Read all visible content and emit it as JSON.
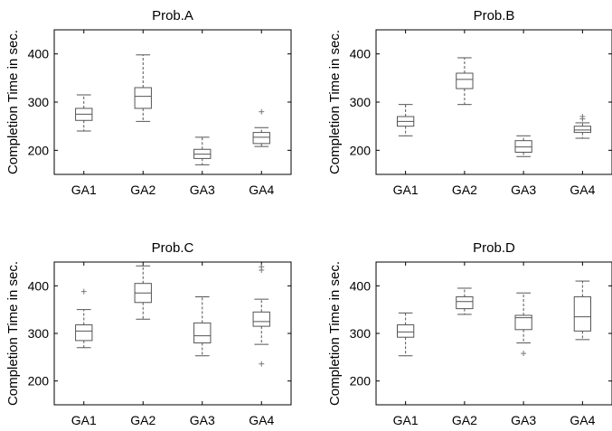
{
  "chart_data": [
    {
      "type": "box",
      "title": "Prob.A",
      "ylabel": "Completion Time in sec.",
      "categories": [
        "GA1",
        "GA2",
        "GA3",
        "GA4"
      ],
      "ylim": [
        150,
        450
      ],
      "yticks": [
        200,
        300,
        400
      ],
      "boxes": [
        {
          "min": 240,
          "q1": 262,
          "median": 275,
          "q3": 287,
          "max": 315,
          "outliers": []
        },
        {
          "min": 260,
          "q1": 287,
          "median": 312,
          "q3": 330,
          "max": 398,
          "outliers": []
        },
        {
          "min": 170,
          "q1": 183,
          "median": 192,
          "q3": 202,
          "max": 227,
          "outliers": []
        },
        {
          "min": 208,
          "q1": 214,
          "median": 227,
          "q3": 237,
          "max": 247,
          "outliers": [
            280
          ]
        }
      ]
    },
    {
      "type": "box",
      "title": "Prob.B",
      "ylabel": "Completion Time in sec.",
      "categories": [
        "GA1",
        "GA2",
        "GA3",
        "GA4"
      ],
      "ylim": [
        150,
        450
      ],
      "yticks": [
        200,
        300,
        400
      ],
      "boxes": [
        {
          "min": 230,
          "q1": 250,
          "median": 260,
          "q3": 270,
          "max": 295,
          "outliers": []
        },
        {
          "min": 295,
          "q1": 328,
          "median": 347,
          "q3": 360,
          "max": 392,
          "outliers": []
        },
        {
          "min": 187,
          "q1": 196,
          "median": 207,
          "q3": 220,
          "max": 230,
          "outliers": []
        },
        {
          "min": 225,
          "q1": 237,
          "median": 242,
          "q3": 250,
          "max": 257,
          "outliers": [
            265,
            270
          ]
        }
      ]
    },
    {
      "type": "box",
      "title": "Prob.C",
      "ylabel": "Completion Time in sec.",
      "categories": [
        "GA1",
        "GA2",
        "GA3",
        "GA4"
      ],
      "ylim": [
        150,
        450
      ],
      "yticks": [
        200,
        300,
        400
      ],
      "boxes": [
        {
          "min": 270,
          "q1": 285,
          "median": 305,
          "q3": 318,
          "max": 350,
          "outliers": [
            388
          ]
        },
        {
          "min": 330,
          "q1": 365,
          "median": 385,
          "q3": 405,
          "max": 442,
          "outliers": []
        },
        {
          "min": 253,
          "q1": 280,
          "median": 295,
          "q3": 322,
          "max": 377,
          "outliers": []
        },
        {
          "min": 277,
          "q1": 315,
          "median": 325,
          "q3": 345,
          "max": 372,
          "outliers": [
            433,
            440,
            236
          ]
        }
      ]
    },
    {
      "type": "box",
      "title": "Prob.D",
      "ylabel": "Completion Time in sec.",
      "categories": [
        "GA1",
        "GA2",
        "GA3",
        "GA4"
      ],
      "ylim": [
        150,
        450
      ],
      "yticks": [
        200,
        300,
        400
      ],
      "boxes": [
        {
          "min": 253,
          "q1": 292,
          "median": 303,
          "q3": 318,
          "max": 343,
          "outliers": []
        },
        {
          "min": 340,
          "q1": 352,
          "median": 367,
          "q3": 377,
          "max": 395,
          "outliers": []
        },
        {
          "min": 280,
          "q1": 308,
          "median": 333,
          "q3": 338,
          "max": 385,
          "outliers": [
            258
          ]
        },
        {
          "min": 287,
          "q1": 305,
          "median": 335,
          "q3": 377,
          "max": 410,
          "outliers": []
        }
      ]
    }
  ],
  "colors": {
    "line": "#555555",
    "axis": "#000000",
    "outlier": "#777777",
    "background": "#ffffff"
  }
}
